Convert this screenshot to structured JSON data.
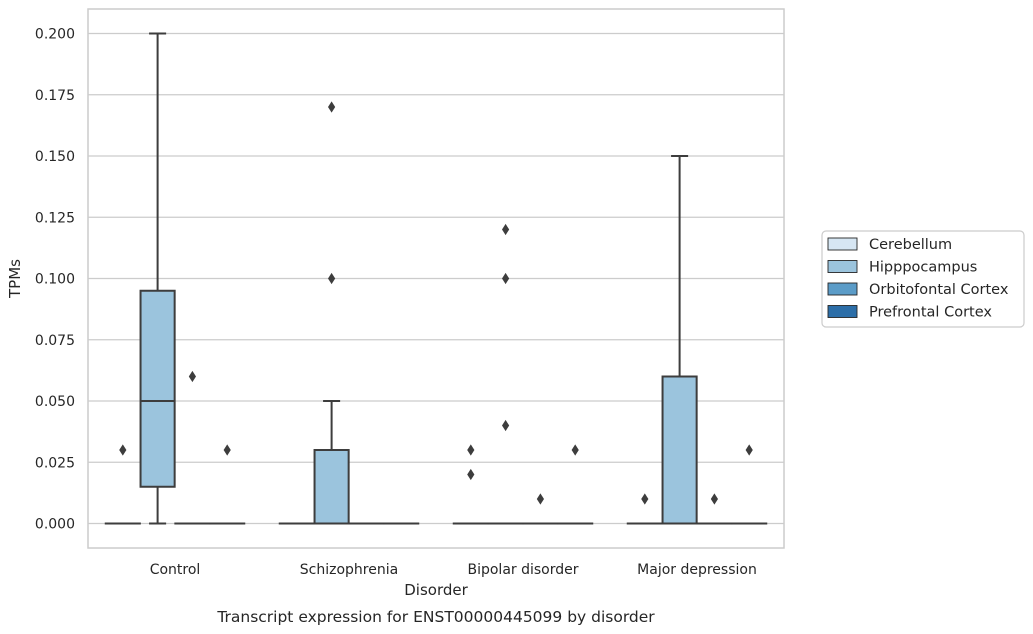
{
  "caption": "Transcript expression for ENST00000445099 by disorder",
  "chart_data": {
    "type": "box",
    "xlabel": "Disorder",
    "ylabel": "TPMs",
    "ylim": [
      -0.01,
      0.21
    ],
    "yticks": [
      "0.000",
      "0.025",
      "0.050",
      "0.075",
      "0.100",
      "0.125",
      "0.150",
      "0.175",
      "0.200"
    ],
    "categories": [
      "Control",
      "Schizophrenia",
      "Bipolar disorder",
      "Major depression"
    ],
    "grid": "horizontal",
    "legend_position": "right",
    "series": [
      {
        "name": "Cerebellum",
        "color": "#d6e6f3",
        "boxes": [
          {
            "min": 0,
            "q1": 0,
            "median": 0,
            "q3": 0,
            "max": 0,
            "outliers": [
              0.03
            ]
          },
          {
            "min": 0,
            "q1": 0,
            "median": 0,
            "q3": 0,
            "max": 0,
            "outliers": []
          },
          {
            "min": 0,
            "q1": 0,
            "median": 0,
            "q3": 0,
            "max": 0,
            "outliers": [
              0.02,
              0.03
            ]
          },
          {
            "min": 0,
            "q1": 0,
            "median": 0,
            "q3": 0,
            "max": 0,
            "outliers": [
              0.01
            ]
          }
        ]
      },
      {
        "name": "Hipppocampus",
        "color": "#9bc4dd",
        "boxes": [
          {
            "min": 0,
            "q1": 0.015,
            "median": 0.05,
            "q3": 0.095,
            "max": 0.2,
            "outliers": []
          },
          {
            "min": 0,
            "q1": 0,
            "median": 0,
            "q3": 0.03,
            "max": 0.05,
            "outliers": [
              0.1,
              0.17
            ]
          },
          {
            "min": 0,
            "q1": 0,
            "median": 0,
            "q3": 0,
            "max": 0,
            "outliers": [
              0.04,
              0.1,
              0.12
            ]
          },
          {
            "min": 0,
            "q1": 0,
            "median": 0,
            "q3": 0.06,
            "max": 0.15,
            "outliers": []
          }
        ]
      },
      {
        "name": "Orbitofontal Cortex",
        "color": "#5b9cc8",
        "boxes": [
          {
            "min": 0,
            "q1": 0,
            "median": 0,
            "q3": 0,
            "max": 0,
            "outliers": [
              0.06
            ]
          },
          {
            "min": 0,
            "q1": 0,
            "median": 0,
            "q3": 0,
            "max": 0,
            "outliers": []
          },
          {
            "min": 0,
            "q1": 0,
            "median": 0,
            "q3": 0,
            "max": 0,
            "outliers": [
              0.01
            ]
          },
          {
            "min": 0,
            "q1": 0,
            "median": 0,
            "q3": 0,
            "max": 0,
            "outliers": [
              0.01
            ]
          }
        ]
      },
      {
        "name": "Prefrontal Cortex",
        "color": "#2c6ea8",
        "boxes": [
          {
            "min": 0,
            "q1": 0,
            "median": 0,
            "q3": 0,
            "max": 0,
            "outliers": [
              0.03
            ]
          },
          {
            "min": 0,
            "q1": 0,
            "median": 0,
            "q3": 0,
            "max": 0,
            "outliers": []
          },
          {
            "min": 0,
            "q1": 0,
            "median": 0,
            "q3": 0,
            "max": 0,
            "outliers": [
              0.03
            ]
          },
          {
            "min": 0,
            "q1": 0,
            "median": 0,
            "q3": 0,
            "max": 0,
            "outliers": [
              0.03
            ]
          }
        ]
      }
    ]
  }
}
